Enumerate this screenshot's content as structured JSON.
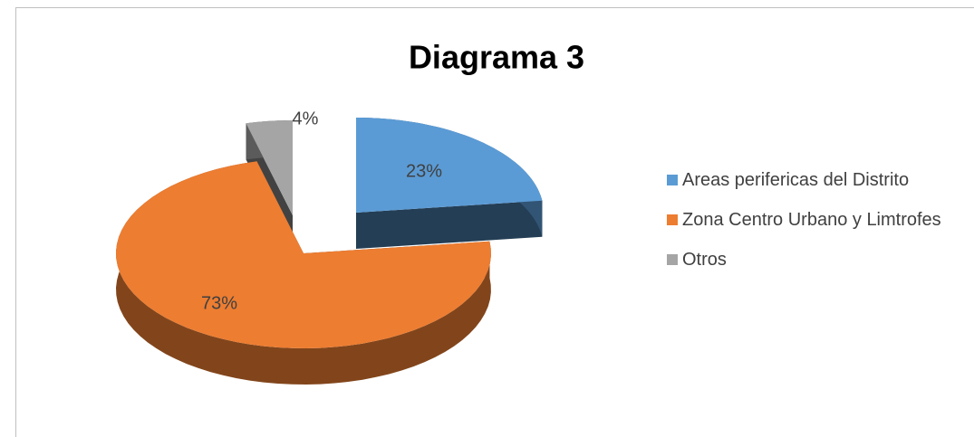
{
  "chart_data": {
    "type": "pie3d",
    "title": "Diagrama 3",
    "categories": [
      "Areas perifericas del Distrito",
      "Zona Centro Urbano y Limtrofes",
      "Otros"
    ],
    "values": [
      23,
      73,
      4
    ],
    "value_labels": [
      "23%",
      "73%",
      "4%"
    ],
    "colors": [
      "#5b9bd5",
      "#ed7d31",
      "#a5a5a5"
    ],
    "legend": "right"
  }
}
